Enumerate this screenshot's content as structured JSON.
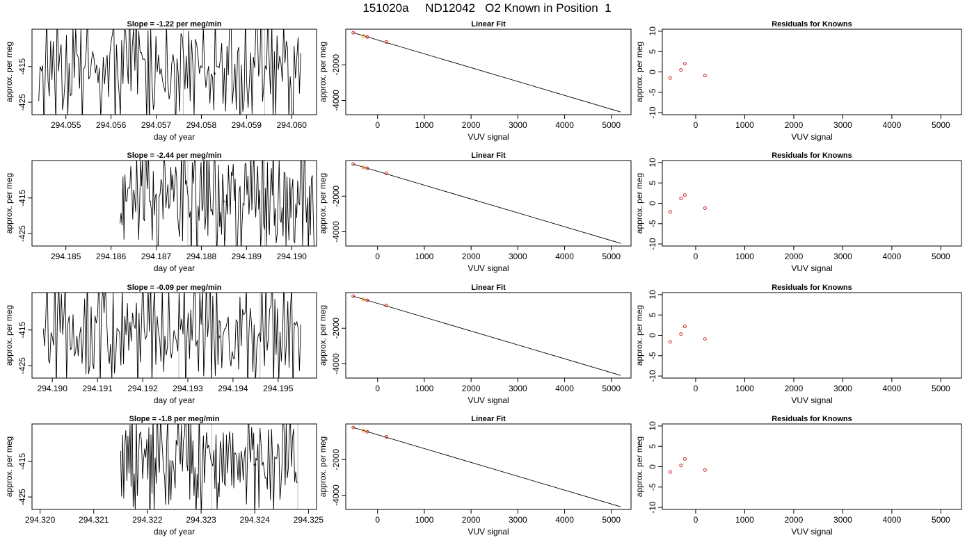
{
  "page_title": "151020a     ND12042   O2 Known in Position  1",
  "colors": {
    "trace": "#000000",
    "marker_orange": "#ffa500",
    "residual_red": "#cd2626",
    "vline_gray": "#bebebe",
    "frame": "#000000"
  },
  "chart_data": [
    {
      "type": "line",
      "panel": "row1-time-series",
      "title": "Slope =  -1.22  per meg/min",
      "xlabel": "day of year",
      "ylabel": "approx. per meg",
      "xlim": [
        294.05425,
        294.06055
      ],
      "ylim": [
        -428.5,
        -404.5
      ],
      "x_ticks": [
        294.055,
        294.056,
        294.057,
        294.058,
        294.059,
        294.06
      ],
      "x_tick_labels": [
        "294.055",
        "294.056",
        "294.057",
        "294.058",
        "294.059",
        "294.060"
      ],
      "y_ticks": [
        -415,
        -425
      ],
      "y_tick_labels": [
        "-415",
        "-425"
      ],
      "n_points": 200,
      "trace_start_x": 294.0544,
      "trace_end_x": 294.0602,
      "trace_levels": [
        -419,
        -414,
        -421,
        -407,
        -424,
        -412,
        -410,
        -420,
        -415,
        -404,
        -423,
        -411,
        -413,
        -426,
        -408,
        -418,
        -416,
        -409,
        -422,
        -417
      ],
      "vlines": [
        294.0576,
        294.0594
      ],
      "marker": {
        "x": 294.0583,
        "y": -417
      }
    },
    {
      "type": "line",
      "panel": "row1-linear-fit",
      "title": "Linear Fit",
      "xlabel": "VUV signal",
      "ylabel": "approx. per meg",
      "xlim": [
        -680,
        5420
      ],
      "ylim": [
        -4800,
        0
      ],
      "x_ticks": [
        0,
        1000,
        2000,
        3000,
        4000,
        5000
      ],
      "x_tick_labels": [
        "0",
        "1000",
        "2000",
        "3000",
        "4000",
        "5000"
      ],
      "y_ticks": [
        -2000,
        -4000
      ],
      "y_tick_labels": [
        "-2000",
        "-4000"
      ],
      "fit_line": {
        "x": [
          -520,
          5200
        ],
        "y": [
          -200,
          -4650
        ]
      },
      "knowns": {
        "x": [
          -520,
          -300,
          -220,
          190
        ],
        "y": [
          -200,
          -380,
          -440,
          -720
        ]
      },
      "orange_point": {
        "x": -300,
        "y": -380
      }
    },
    {
      "type": "scatter",
      "panel": "row1-residuals",
      "title": "Residuals for Knowns",
      "xlabel": "VUV signal",
      "ylabel": "approx. per meg",
      "xlim": [
        -680,
        5420
      ],
      "ylim": [
        -10.5,
        10.5
      ],
      "x_ticks": [
        0,
        1000,
        2000,
        3000,
        4000,
        5000
      ],
      "x_tick_labels": [
        "0",
        "1000",
        "2000",
        "3000",
        "4000",
        "5000"
      ],
      "y_ticks": [
        -10,
        -5,
        0,
        5,
        10
      ],
      "y_tick_labels": [
        "-10",
        "-5",
        "0",
        "5",
        "10"
      ],
      "x": [
        -520,
        -300,
        -220,
        190
      ],
      "y": [
        -1.5,
        0.5,
        2.0,
        -0.9
      ]
    },
    {
      "type": "line",
      "panel": "row2-time-series",
      "title": "Slope =  -2.44  per meg/min",
      "xlabel": "day of year",
      "ylabel": "approx. per meg",
      "xlim": [
        294.18425,
        294.19055
      ],
      "ylim": [
        -428.5,
        -404.5
      ],
      "x_ticks": [
        294.185,
        294.186,
        294.187,
        294.188,
        294.189,
        294.19
      ],
      "x_tick_labels": [
        "294.185",
        "294.186",
        "294.187",
        "294.188",
        "294.189",
        "294.190"
      ],
      "y_ticks": [
        -415,
        -425
      ],
      "y_tick_labels": [
        "-415",
        "-425"
      ],
      "n_points": 200,
      "trace_start_x": 294.1862,
      "trace_end_x": 294.1905,
      "trace_levels": [
        -421,
        -415,
        -419,
        -410,
        -422,
        -413,
        -407,
        -418,
        -416,
        -404,
        -420,
        -411,
        -414,
        -423,
        -409,
        -417,
        -412,
        -406,
        -419,
        -425
      ],
      "vlines": [
        294.1877,
        294.1894
      ],
      "marker": {
        "x": 294.1885,
        "y": -416
      }
    },
    {
      "type": "line",
      "panel": "row2-linear-fit",
      "title": "Linear Fit",
      "xlabel": "VUV signal",
      "ylabel": "approx. per meg",
      "xlim": [
        -680,
        5420
      ],
      "ylim": [
        -4800,
        0
      ],
      "x_ticks": [
        0,
        1000,
        2000,
        3000,
        4000,
        5000
      ],
      "x_tick_labels": [
        "0",
        "1000",
        "2000",
        "3000",
        "4000",
        "5000"
      ],
      "y_ticks": [
        -2000,
        -4000
      ],
      "y_tick_labels": [
        "-2000",
        "-4000"
      ],
      "fit_line": {
        "x": [
          -520,
          5200
        ],
        "y": [
          -200,
          -4650
        ]
      },
      "knowns": {
        "x": [
          -520,
          -300,
          -220,
          190
        ],
        "y": [
          -200,
          -380,
          -440,
          -720
        ]
      },
      "orange_point": {
        "x": -300,
        "y": -380
      }
    },
    {
      "type": "scatter",
      "panel": "row2-residuals",
      "title": "Residuals for Knowns",
      "xlabel": "VUV signal",
      "ylabel": "approx. per meg",
      "xlim": [
        -680,
        5420
      ],
      "ylim": [
        -10.5,
        10.5
      ],
      "x_ticks": [
        0,
        1000,
        2000,
        3000,
        4000,
        5000
      ],
      "x_tick_labels": [
        "0",
        "1000",
        "2000",
        "3000",
        "4000",
        "5000"
      ],
      "y_ticks": [
        -10,
        -5,
        0,
        5,
        10
      ],
      "y_tick_labels": [
        "-10",
        "-5",
        "0",
        "5",
        "10"
      ],
      "x": [
        -520,
        -300,
        -220,
        190
      ],
      "y": [
        -2.1,
        1.2,
        2.0,
        -1.2
      ]
    },
    {
      "type": "line",
      "panel": "row3-time-series",
      "title": "Slope =  -0.09  per meg/min",
      "xlabel": "day of year",
      "ylabel": "approx. per meg",
      "xlim": [
        294.18955,
        294.19585
      ],
      "ylim": [
        -428.5,
        -404.5
      ],
      "x_ticks": [
        294.19,
        294.191,
        294.192,
        294.193,
        294.194,
        294.195
      ],
      "x_tick_labels": [
        "294.190",
        "294.191",
        "294.192",
        "294.193",
        "294.194",
        "294.195"
      ],
      "y_ticks": [
        -415,
        -425
      ],
      "y_tick_labels": [
        "-415",
        "-425"
      ],
      "n_points": 200,
      "trace_start_x": 294.1898,
      "trace_end_x": 294.1955,
      "trace_levels": [
        -418,
        -412,
        -421,
        -408,
        -424,
        -415,
        -410,
        -420,
        -413,
        -406,
        -422,
        -416,
        -411,
        -425,
        -409,
        -419,
        -414,
        -407,
        -423,
        -417
      ],
      "vlines": [
        294.1928,
        294.1946
      ],
      "marker": {
        "x": 294.1937,
        "y": -417
      }
    },
    {
      "type": "line",
      "panel": "row3-linear-fit",
      "title": "Linear Fit",
      "xlabel": "VUV signal",
      "ylabel": "approx. per meg",
      "xlim": [
        -680,
        5420
      ],
      "ylim": [
        -4800,
        0
      ],
      "x_ticks": [
        0,
        1000,
        2000,
        3000,
        4000,
        5000
      ],
      "x_tick_labels": [
        "0",
        "1000",
        "2000",
        "3000",
        "4000",
        "5000"
      ],
      "y_ticks": [
        -2000,
        -4000
      ],
      "y_tick_labels": [
        "-2000",
        "-4000"
      ],
      "fit_line": {
        "x": [
          -520,
          5200
        ],
        "y": [
          -200,
          -4650
        ]
      },
      "knowns": {
        "x": [
          -520,
          -300,
          -220,
          190
        ],
        "y": [
          -200,
          -380,
          -440,
          -720
        ]
      },
      "orange_point": {
        "x": -300,
        "y": -380
      }
    },
    {
      "type": "scatter",
      "panel": "row3-residuals",
      "title": "Residuals for Knowns",
      "xlabel": "VUV signal",
      "ylabel": "approx. per meg",
      "xlim": [
        -680,
        5420
      ],
      "ylim": [
        -10.5,
        10.5
      ],
      "x_ticks": [
        0,
        1000,
        2000,
        3000,
        4000,
        5000
      ],
      "x_tick_labels": [
        "0",
        "1000",
        "2000",
        "3000",
        "4000",
        "5000"
      ],
      "y_ticks": [
        -10,
        -5,
        0,
        5,
        10
      ],
      "y_tick_labels": [
        "-10",
        "-5",
        "0",
        "5",
        "10"
      ],
      "x": [
        -520,
        -300,
        -220,
        190
      ],
      "y": [
        -1.6,
        0.3,
        2.2,
        -0.9
      ]
    },
    {
      "type": "line",
      "panel": "row4-time-series",
      "title": "Slope =  -1.8  per meg/min",
      "xlabel": "day of year",
      "ylabel": "approx. per meg",
      "xlim": [
        294.31985,
        294.32515
      ],
      "ylim": [
        -428.5,
        -404.5
      ],
      "x_ticks": [
        294.32,
        294.321,
        294.322,
        294.323,
        294.324,
        294.325
      ],
      "x_tick_labels": [
        "294.320",
        "294.321",
        "294.322",
        "294.323",
        "294.324",
        "294.325"
      ],
      "y_ticks": [
        -415,
        -425
      ],
      "y_tick_labels": [
        "-415",
        "-425"
      ],
      "n_points": 170,
      "trace_start_x": 294.3215,
      "trace_end_x": 294.3248,
      "trace_levels": [
        -420,
        -414,
        -409,
        -422,
        -416,
        -405,
        -418,
        -412,
        -424,
        -410,
        -415,
        -407,
        -421,
        -413,
        -419,
        -406,
        -417,
        -423,
        -411,
        -416
      ],
      "vlines": [
        294.3232,
        294.3248
      ],
      "marker": {
        "x": 294.324,
        "y": -416
      }
    },
    {
      "type": "line",
      "panel": "row4-linear-fit",
      "title": "Linear Fit",
      "xlabel": "VUV signal",
      "ylabel": "approx. per meg",
      "xlim": [
        -680,
        5420
      ],
      "ylim": [
        -4800,
        0
      ],
      "x_ticks": [
        0,
        1000,
        2000,
        3000,
        4000,
        5000
      ],
      "x_tick_labels": [
        "0",
        "1000",
        "2000",
        "3000",
        "4000",
        "5000"
      ],
      "y_ticks": [
        -2000,
        -4000
      ],
      "y_tick_labels": [
        "-2000",
        "-4000"
      ],
      "fit_line": {
        "x": [
          -520,
          5200
        ],
        "y": [
          -200,
          -4650
        ]
      },
      "knowns": {
        "x": [
          -520,
          -300,
          -220,
          190
        ],
        "y": [
          -200,
          -380,
          -440,
          -720
        ]
      },
      "orange_point": {
        "x": -300,
        "y": -380
      }
    },
    {
      "type": "scatter",
      "panel": "row4-residuals",
      "title": "Residuals for Knowns",
      "xlabel": "VUV signal",
      "ylabel": "approx. per meg",
      "xlim": [
        -680,
        5420
      ],
      "ylim": [
        -10.5,
        10.5
      ],
      "x_ticks": [
        0,
        1000,
        2000,
        3000,
        4000,
        5000
      ],
      "x_tick_labels": [
        "0",
        "1000",
        "2000",
        "3000",
        "4000",
        "5000"
      ],
      "y_ticks": [
        -10,
        -5,
        0,
        5,
        10
      ],
      "y_tick_labels": [
        "-10",
        "-5",
        "0",
        "5",
        "10"
      ],
      "x": [
        -520,
        -300,
        -220,
        190
      ],
      "y": [
        -1.3,
        0.3,
        1.9,
        -0.8
      ]
    }
  ]
}
